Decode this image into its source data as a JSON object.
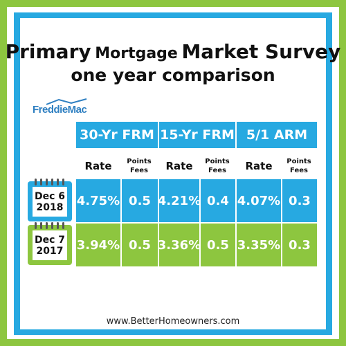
{
  "title": {
    "part1": "Primary",
    "part2": "Mortgage",
    "part3": "Market Survey",
    "subtitle": "one year comparison"
  },
  "logo": {
    "text": "FreddieMac"
  },
  "table": {
    "headers": [
      "30-Yr FRM",
      "15-Yr FRM",
      "5/1 ARM"
    ],
    "subheaders": {
      "rate": "Rate",
      "points_line1": "Points",
      "points_line2": "Fees"
    },
    "rows": [
      {
        "date_line1": "Dec 6",
        "date_line2": "2018",
        "values": [
          "4.75%",
          "0.5",
          "4.21%",
          "0.4",
          "4.07%",
          "0.3"
        ]
      },
      {
        "date_line1": "Dec 7",
        "date_line2": "2017",
        "values": [
          "3.94%",
          "0.5",
          "3.36%",
          "0.5",
          "3.35%",
          "0.3"
        ]
      }
    ]
  },
  "footer": {
    "url": "www.BetterHomeowners.com"
  },
  "colors": {
    "blue": "#27a9e1",
    "green": "#8dc63f",
    "logo_blue": "#2e7fc1"
  }
}
